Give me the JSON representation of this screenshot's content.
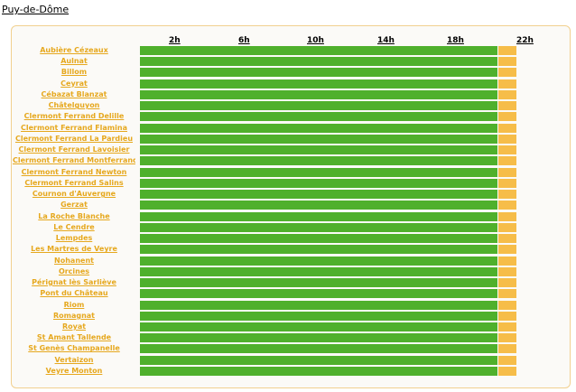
{
  "page": {
    "title": "Puy-de-Dôme"
  },
  "hours": [
    "2h",
    "6h",
    "10h",
    "14h",
    "18h",
    "22h"
  ],
  "grid": {
    "green_cells_per_row": 40,
    "orange_cells_per_row": 2
  },
  "colors": {
    "available": "#4fb02c",
    "pending": "#f6bd49",
    "station_link": "#e6a81e",
    "panel_border": "#f1d08f"
  },
  "stations": [
    "Aubière Cézeaux",
    "Aulnat",
    "Billom",
    "Ceyrat",
    "Cébazat Blanzat",
    "Châtelguyon",
    "Clermont Ferrand Delille",
    "Clermont Ferrand Flamina",
    "Clermont Ferrand La Pardieu",
    "Clermont Ferrand Lavoisier",
    "Clermont Ferrand Montferrand",
    "Clermont Ferrand Newton",
    "Clermont Ferrand Salins",
    "Cournon d'Auvergne",
    "Gerzat",
    "La Roche Blanche",
    "Le Cendre",
    "Lempdes",
    "Les Martres de Veyre",
    "Nohanent",
    "Orcines",
    "Pérignat lès Sarliève",
    "Pont du Château",
    "Riom",
    "Romagnat",
    "Royat",
    "St Amant Tallende",
    "St Genès Champanelle",
    "Vertaizon",
    "Veyre Monton"
  ]
}
